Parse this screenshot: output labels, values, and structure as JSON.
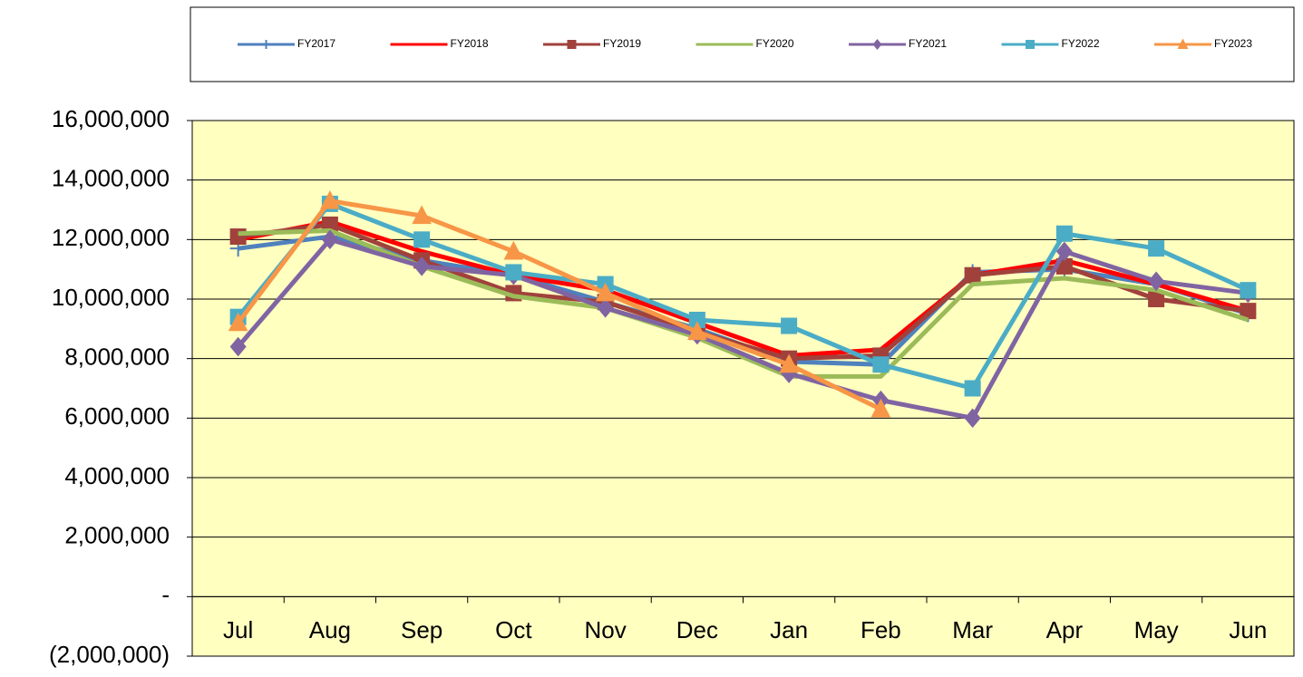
{
  "chart_data": {
    "type": "line",
    "categories": [
      "Jul",
      "Aug",
      "Sep",
      "Oct",
      "Nov",
      "Dec",
      "Jan",
      "Feb",
      "Mar",
      "Apr",
      "May",
      "Jun"
    ],
    "series": [
      {
        "name": "FY2017",
        "color": "#4f81bd",
        "marker": "plus",
        "values": [
          11700000,
          12100000,
          11300000,
          10800000,
          9900000,
          9000000,
          7900000,
          7800000,
          10900000,
          11000000,
          10500000,
          9500000
        ]
      },
      {
        "name": "FY2018",
        "color": "#ff0000",
        "marker": "none",
        "values": [
          12000000,
          12600000,
          11600000,
          10800000,
          10300000,
          9200000,
          8100000,
          8300000,
          10800000,
          11300000,
          10500000,
          9600000
        ]
      },
      {
        "name": "FY2019",
        "color": "#a0413c",
        "marker": "square",
        "values": [
          12100000,
          12500000,
          11300000,
          10200000,
          9900000,
          8900000,
          8000000,
          8100000,
          10800000,
          11100000,
          10000000,
          9600000
        ]
      },
      {
        "name": "FY2020",
        "color": "#9bbb59",
        "marker": "none",
        "values": [
          12200000,
          12300000,
          11100000,
          10100000,
          9700000,
          8700000,
          7400000,
          7400000,
          10500000,
          10700000,
          10300000,
          9300000
        ]
      },
      {
        "name": "FY2021",
        "color": "#8064a2",
        "marker": "diamond",
        "values": [
          8400000,
          12000000,
          11100000,
          10800000,
          9700000,
          8800000,
          7500000,
          6600000,
          6000000,
          11600000,
          10600000,
          10200000
        ]
      },
      {
        "name": "FY2022",
        "color": "#4bacc6",
        "marker": "square",
        "values": [
          9400000,
          13200000,
          12000000,
          10900000,
          10500000,
          9300000,
          9100000,
          7800000,
          7000000,
          12200000,
          11700000,
          10300000
        ]
      },
      {
        "name": "FY2023",
        "color": "#f79646",
        "marker": "triangle",
        "values": [
          9200000,
          13300000,
          12800000,
          11600000,
          10200000,
          8900000,
          7800000,
          6300000,
          null,
          null,
          null,
          null
        ]
      }
    ],
    "ylim": [
      -2000000,
      16000000
    ],
    "yticks": [
      {
        "value": -2000000,
        "label": "(2,000,000)"
      },
      {
        "value": 0,
        "label": "-"
      },
      {
        "value": 2000000,
        "label": "2,000,000"
      },
      {
        "value": 4000000,
        "label": "4,000,000"
      },
      {
        "value": 6000000,
        "label": "6,000,000"
      },
      {
        "value": 8000000,
        "label": "8,000,000"
      },
      {
        "value": 10000000,
        "label": "10,000,000"
      },
      {
        "value": 12000000,
        "label": "12,000,000"
      },
      {
        "value": 14000000,
        "label": "14,000,000"
      },
      {
        "value": 16000000,
        "label": "16,000,000"
      }
    ],
    "grid": true,
    "legend": "top",
    "plot_background": "#ffffc0"
  }
}
